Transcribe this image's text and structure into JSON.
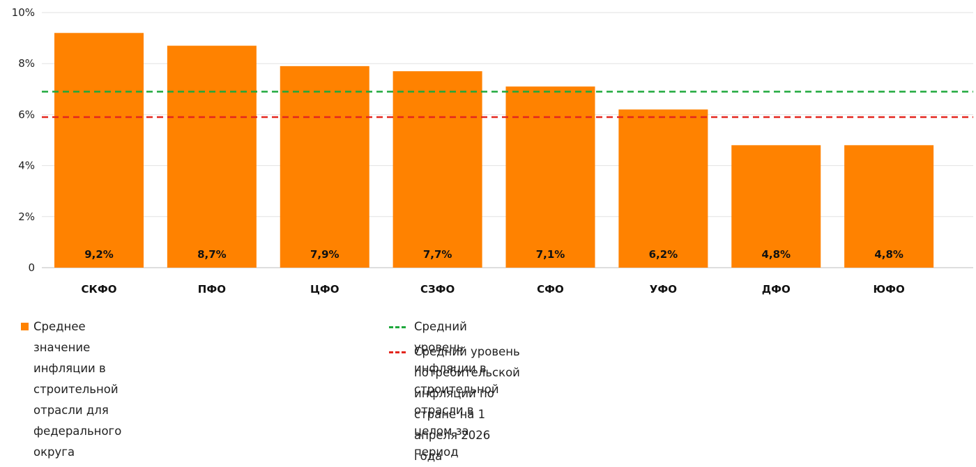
{
  "chart_data": {
    "type": "bar",
    "categories": [
      "СКФО",
      "ПФО",
      "ЦФО",
      "СЗФО",
      "СФО",
      "УФО",
      "ДФО",
      "ЮФО"
    ],
    "series": [
      {
        "name": "Среднее значение инфляции в строительной отрасли для федерального округа",
        "values": [
          9.2,
          8.7,
          7.9,
          7.7,
          7.1,
          6.2,
          4.8,
          4.8
        ],
        "color": "#FF8200"
      }
    ],
    "data_labels": [
      "9,2%",
      "8,7%",
      "7,9%",
      "7,7%",
      "7,1%",
      "6,2%",
      "4,8%",
      "4,8%"
    ],
    "reference_lines": [
      {
        "name": "Средний уровень инфляции в строительной отрасли в целом за период",
        "value": 6.9,
        "color": "#1EA83C",
        "style": "dashed"
      },
      {
        "name": "Средний уровень потребительской инфляции по стране на 1 апреля 2026 года",
        "value": 5.9,
        "color": "#E3261E",
        "style": "dashed"
      }
    ],
    "ylim": [
      0,
      10
    ],
    "yticks": [
      0,
      2,
      4,
      6,
      8,
      10
    ],
    "ytick_labels": [
      "0",
      "2%",
      "4%",
      "6%",
      "8%",
      "10%"
    ],
    "grid": true,
    "legend_placement": "bottom",
    "title": "",
    "xlabel": "",
    "ylabel": ""
  },
  "legend": {
    "bars": "Среднее значение инфляции в строительной\nотрасли для федерального округа",
    "green": "Средний уровень инфляции в строительной отрасли в целом за период",
    "red": "Средний уровень потребительской инфляции по стране на 1 апреля 2026 года"
  },
  "colors": {
    "bar": "#FF8200",
    "green": "#1EA83C",
    "red": "#E3261E",
    "grid": "#E2E2E2"
  }
}
